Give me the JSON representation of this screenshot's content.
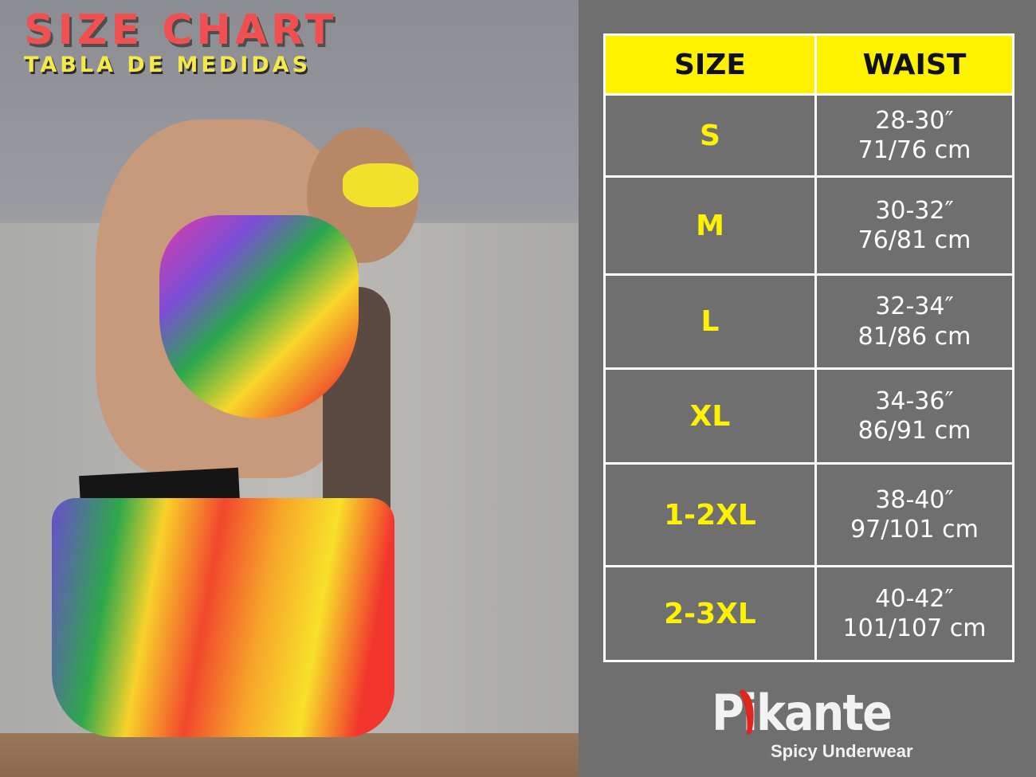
{
  "header": {
    "title": "SIZE CHART",
    "subtitle": "TABLA DE MEDIDAS"
  },
  "table": {
    "columns": [
      "SIZE",
      "WAIST"
    ],
    "rows": [
      {
        "size": "S",
        "inches": "28-30″",
        "cm": "71/76 cm"
      },
      {
        "size": "M",
        "inches": "30-32″",
        "cm": "76/81 cm"
      },
      {
        "size": "L",
        "inches": "32-34″",
        "cm": "81/86 cm"
      },
      {
        "size": "XL",
        "inches": "34-36″",
        "cm": "86/91 cm"
      },
      {
        "size": "1-2XL",
        "inches": "38-40″",
        "cm": "97/101 cm"
      },
      {
        "size": "2-3XL",
        "inches": "40-42″",
        "cm": "101/107 cm"
      }
    ]
  },
  "logo": {
    "brand": "Pikante",
    "tagline": "Spicy Underwear"
  },
  "colors": {
    "panel": "#6f6f6f",
    "header_fill": "#fff200",
    "size_text": "#fff200",
    "title": "#f0504f",
    "subtitle": "#f5e84c"
  }
}
